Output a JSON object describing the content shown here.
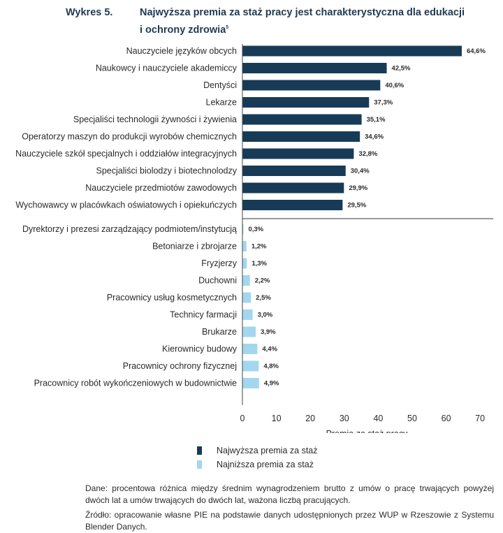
{
  "title": {
    "prefix": "Wykres 5.",
    "line1": "Najwyższa premia za staż pracy jest charakterystyczna dla edukacji",
    "line2": "i ochrony zdrowia",
    "footnote_mark": "5"
  },
  "colors": {
    "highest": "#173b57",
    "lowest": "#a3d7ee",
    "separator": "#333333"
  },
  "chart_data": {
    "type": "bar",
    "orientation": "horizontal",
    "xlabel": "Premia za staż pracy",
    "xlim": [
      0,
      70
    ],
    "xticks": [
      0,
      10,
      20,
      30,
      40,
      50,
      60,
      70
    ],
    "grid": false,
    "legend_position": "bottom",
    "series": [
      {
        "name": "Najwyższa premia za staż",
        "categories": [
          "Nauczyciele języków obcych",
          "Naukowcy i nauczyciele akademiccy",
          "Dentyści",
          "Lekarze",
          "Specjaliści technologii żywności i żywienia",
          "Operatorzy maszyn do produkcji wyrobów chemicznych",
          "Nauczyciele szkół specjalnych i oddziałów integracyjnych",
          "Specjaliści biolodzy i biotechnolodzy",
          "Nauczyciele przedmiotów zawodowych",
          "Wychowawcy w placówkach oświatowych i opiekuńczych"
        ],
        "values": [
          64.6,
          42.5,
          40.6,
          37.3,
          35.1,
          34.6,
          32.8,
          30.4,
          29.9,
          29.5
        ],
        "labels": [
          "64,6%",
          "42,5%",
          "40,6%",
          "37,3%",
          "35,1%",
          "34,6%",
          "32,8%",
          "30,4%",
          "29,9%",
          "29,5%"
        ]
      },
      {
        "name": "Najniższa premia za staż",
        "categories": [
          "Dyrektorzy i prezesi zarządzający podmiotem/instytucją",
          "Betoniarze i zbrojarze",
          "Fryzjerzy",
          "Duchowni",
          "Pracownicy usług kosmetycznych",
          "Technicy farmacji",
          "Brukarze",
          "Kierownicy budowy",
          "Pracownicy ochrony fizycznej",
          "Pracownicy robót wykończeniowych w budownictwie"
        ],
        "values": [
          0.3,
          1.2,
          1.3,
          2.2,
          2.5,
          3.0,
          3.9,
          4.4,
          4.8,
          4.9
        ],
        "labels": [
          "0,3%",
          "1,2%",
          "1,3%",
          "2,2%",
          "2,5%",
          "3,0%",
          "3,9%",
          "4,4%",
          "4,8%",
          "4,9%"
        ]
      }
    ]
  },
  "legend": [
    {
      "label": "Najwyższa premia za staż"
    },
    {
      "label": "Najniższa premia za staż"
    }
  ],
  "notes": {
    "data": "Dane: procentowa różnica między średnim wynagrodzeniem brutto z umów o pracę trwających powyżej dwóch lat a umów trwających do dwóch lat, ważona liczbą pracujących.",
    "source": "Źródło: opracowanie własne PIE na podstawie danych udostępnionych przez WUP w Rzeszowie z Systemu Blender Danych."
  }
}
